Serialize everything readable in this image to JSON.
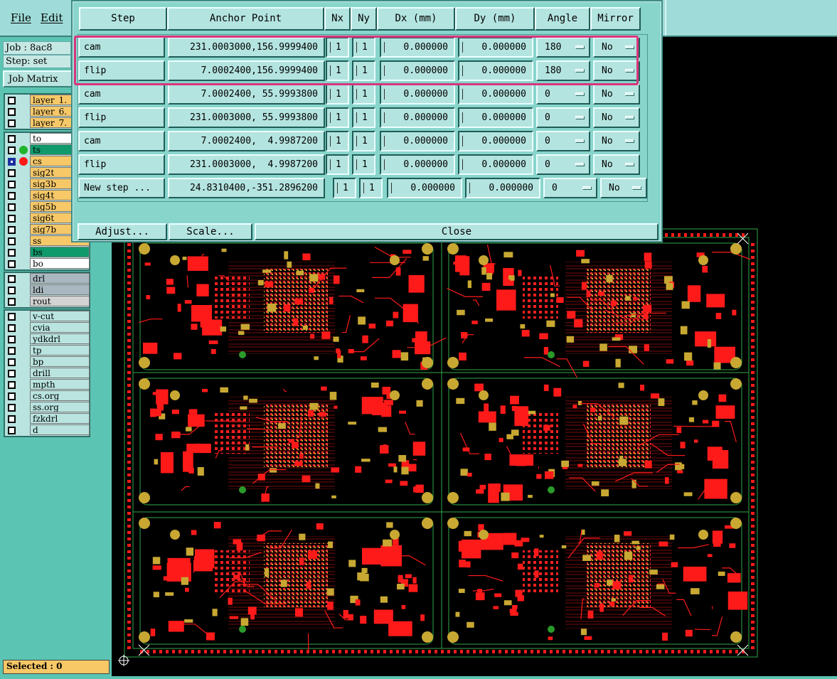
{
  "menu": {
    "file": "File",
    "edit": "Edit"
  },
  "left_panel": {
    "job_line": "Job : 8ac8",
    "step_line": "Step: set",
    "job_matrix_button": "Job Matrix",
    "layer_groups": [
      {
        "layers": [
          {
            "name": "layer_1.",
            "color": "#f6c868",
            "active": false,
            "dot": ""
          },
          {
            "name": "layer_6.",
            "color": "#f6c868",
            "active": false,
            "dot": ""
          },
          {
            "name": "layer_7.",
            "color": "#f6c868",
            "active": false,
            "dot": ""
          }
        ]
      },
      {
        "layers": [
          {
            "name": "to",
            "color": "#ffffff",
            "active": false,
            "dot": ""
          },
          {
            "name": "ts",
            "color": "#109a6c",
            "active": false,
            "dot": "#1fb52a"
          },
          {
            "name": "cs",
            "color": "#f6c868",
            "active": true,
            "dot": "#ff1a1a"
          },
          {
            "name": "sig2t",
            "color": "#f6c868",
            "active": false,
            "dot": ""
          },
          {
            "name": "sig3b",
            "color": "#f6c868",
            "active": false,
            "dot": ""
          },
          {
            "name": "sig4t",
            "color": "#f6c868",
            "active": false,
            "dot": ""
          },
          {
            "name": "sig5b",
            "color": "#f6c868",
            "active": false,
            "dot": ""
          },
          {
            "name": "sig6t",
            "color": "#f6c868",
            "active": false,
            "dot": ""
          },
          {
            "name": "sig7b",
            "color": "#f6c868",
            "active": false,
            "dot": ""
          },
          {
            "name": "ss",
            "color": "#f6c868",
            "active": false,
            "dot": ""
          },
          {
            "name": "bs",
            "color": "#109a6c",
            "active": false,
            "dot": ""
          },
          {
            "name": "bo",
            "color": "#ffffff",
            "active": false,
            "dot": ""
          }
        ]
      },
      {
        "layers": [
          {
            "name": "drl",
            "color": "#a9b8c0",
            "active": false,
            "dot": ""
          },
          {
            "name": "ldi",
            "color": "#a9b8c0",
            "active": false,
            "dot": ""
          },
          {
            "name": "rout",
            "color": "#d3d3d3",
            "active": false,
            "dot": ""
          }
        ]
      },
      {
        "layers": [
          {
            "name": "v-cut",
            "color": "#b9e4e0",
            "active": false,
            "dot": ""
          },
          {
            "name": "cvia",
            "color": "#b9e4e0",
            "active": false,
            "dot": ""
          },
          {
            "name": "ydkdrl",
            "color": "#b9e4e0",
            "active": false,
            "dot": ""
          },
          {
            "name": "tp",
            "color": "#b9e4e0",
            "active": false,
            "dot": ""
          },
          {
            "name": "bp",
            "color": "#b9e4e0",
            "active": false,
            "dot": ""
          },
          {
            "name": "drill",
            "color": "#b9e4e0",
            "active": false,
            "dot": ""
          },
          {
            "name": "mpth",
            "color": "#b9e4e0",
            "active": false,
            "dot": ""
          },
          {
            "name": "cs.org",
            "color": "#b9e4e0",
            "active": false,
            "dot": ""
          },
          {
            "name": "ss.org",
            "color": "#b9e4e0",
            "active": false,
            "dot": ""
          },
          {
            "name": "fzkdrl",
            "color": "#b9e4e0",
            "active": false,
            "dot": ""
          },
          {
            "name": "d",
            "color": "#b9e4e0",
            "active": false,
            "dot": ""
          }
        ]
      }
    ],
    "selected": "Selected : 0"
  },
  "dialog": {
    "headers": {
      "step": "Step",
      "anchor": "Anchor Point",
      "nx": "Nx",
      "ny": "Ny",
      "dx": "Dx (mm)",
      "dy": "Dy (mm)",
      "angle": "Angle",
      "mirror": "Mirror"
    },
    "rows": [
      {
        "step": "cam",
        "anchor": "231.0003000,156.9999400",
        "nx": "1",
        "ny": "1",
        "dx": "0.000000",
        "dy": "0.000000",
        "angle": "180",
        "mirror": "No"
      },
      {
        "step": "flip",
        "anchor": "  7.0002400,156.9999400",
        "nx": "1",
        "ny": "1",
        "dx": "0.000000",
        "dy": "0.000000",
        "angle": "180",
        "mirror": "No"
      },
      {
        "step": "cam",
        "anchor": "  7.0002400, 55.9993800",
        "nx": "1",
        "ny": "1",
        "dx": "0.000000",
        "dy": "0.000000",
        "angle": "0",
        "mirror": "No"
      },
      {
        "step": "flip",
        "anchor": "231.0003000, 55.9993800",
        "nx": "1",
        "ny": "1",
        "dx": "0.000000",
        "dy": "0.000000",
        "angle": "0",
        "mirror": "No"
      },
      {
        "step": "cam",
        "anchor": "  7.0002400,  4.9987200",
        "nx": "1",
        "ny": "1",
        "dx": "0.000000",
        "dy": "0.000000",
        "angle": "0",
        "mirror": "No"
      },
      {
        "step": "flip",
        "anchor": "231.0003000,  4.9987200",
        "nx": "1",
        "ny": "1",
        "dx": "0.000000",
        "dy": "0.000000",
        "angle": "0",
        "mirror": "No"
      }
    ],
    "new_row": {
      "step": "New step ...",
      "anchor": " 24.8310400,-351.2896200",
      "nx": "1",
      "ny": "1",
      "dx": "0.000000",
      "dy": "0.000000",
      "angle": "0",
      "mirror": "No"
    },
    "buttons": {
      "adjust": "Adjust...",
      "scale": "Scale...",
      "close": "Close"
    }
  },
  "colors": {
    "accent_highlight": "#d9357c",
    "board_copper_red": "#ff1a1a",
    "board_pad_gold": "#c8a832",
    "board_outline_green": "#2fa84a"
  }
}
